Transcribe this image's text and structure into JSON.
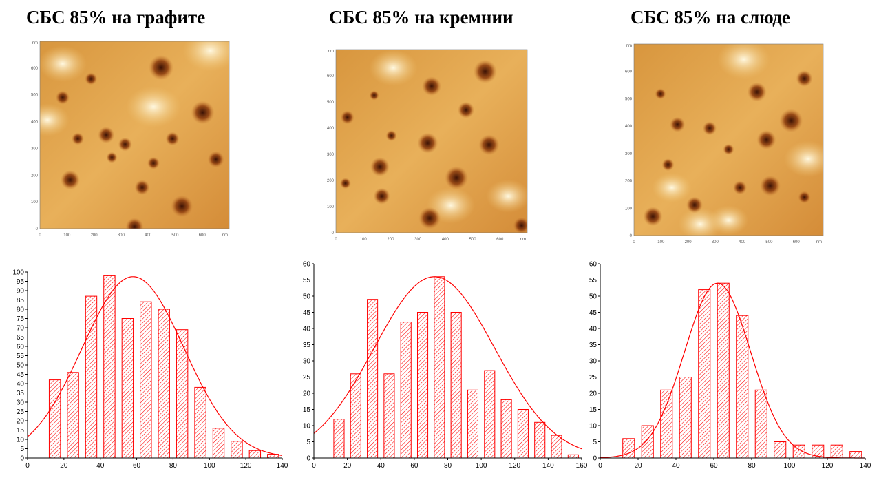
{
  "panels": [
    {
      "title": "СБС 85% на графите",
      "afm": {
        "x_ticks": [
          "0",
          "100",
          "200",
          "300",
          "400",
          "500",
          "600"
        ],
        "y_ticks": [
          "0",
          "100",
          "200",
          "300",
          "400",
          "500",
          "600"
        ],
        "unit": "nm"
      }
    },
    {
      "title": "СБС 85% на кремнии",
      "afm": {
        "x_ticks": [
          "0",
          "100",
          "200",
          "300",
          "400",
          "500",
          "600"
        ],
        "y_ticks": [
          "0",
          "100",
          "200",
          "300",
          "400",
          "500",
          "600"
        ],
        "unit": "nm"
      }
    },
    {
      "title": "СБС 85% на слюде",
      "afm": {
        "x_ticks": [
          "0",
          "100",
          "200",
          "300",
          "400",
          "500",
          "600"
        ],
        "y_ticks": [
          "0",
          "100",
          "200",
          "300",
          "400",
          "500",
          "600"
        ],
        "unit": "nm"
      }
    }
  ],
  "colors": {
    "bar": "#ff0000",
    "curve": "#ff0000",
    "axis": "#000000",
    "afm_light": "#fbe8b0",
    "afm_mid": "#e0a050",
    "afm_dark": "#4a1a06"
  },
  "chart_data": [
    {
      "type": "bar",
      "x": [
        15,
        25,
        35,
        45,
        55,
        65,
        75,
        85,
        95,
        105,
        115,
        125,
        135
      ],
      "values": [
        42,
        46,
        87,
        98,
        75,
        84,
        80,
        69,
        38,
        16,
        9,
        4,
        2
      ],
      "xlim": [
        0,
        140
      ],
      "ylim": [
        0,
        100
      ],
      "xticks": [
        0,
        20,
        40,
        60,
        80,
        100,
        120,
        140
      ],
      "yticks": [
        0,
        5,
        10,
        15,
        20,
        25,
        30,
        35,
        40,
        45,
        50,
        55,
        60,
        65,
        70,
        75,
        80,
        85,
        90,
        95,
        100
      ],
      "fit": {
        "type": "gaussian",
        "peak": 97.5,
        "mean": 58,
        "sd": 28
      },
      "grid": false
    },
    {
      "type": "bar",
      "x": [
        15,
        25,
        35,
        45,
        55,
        65,
        75,
        85,
        95,
        105,
        115,
        125,
        135,
        145,
        155
      ],
      "values": [
        12,
        26,
        49,
        26,
        42,
        45,
        56,
        45,
        21,
        27,
        18,
        15,
        11,
        7,
        1
      ],
      "xlim": [
        0,
        160
      ],
      "ylim": [
        0,
        60
      ],
      "xticks": [
        0,
        20,
        40,
        60,
        80,
        100,
        120,
        140,
        160
      ],
      "yticks": [
        0,
        5,
        10,
        15,
        20,
        25,
        30,
        35,
        40,
        45,
        50,
        55,
        60
      ],
      "fit": {
        "type": "gaussian",
        "peak": 56,
        "mean": 72,
        "sd": 36
      },
      "grid": false
    },
    {
      "type": "bar",
      "x": [
        15,
        25,
        35,
        45,
        55,
        65,
        75,
        85,
        95,
        105,
        115,
        125,
        135
      ],
      "values": [
        6,
        10,
        21,
        25,
        52,
        54,
        44,
        21,
        5,
        4,
        4,
        4,
        2
      ],
      "xlim": [
        0,
        140
      ],
      "ylim": [
        0,
        60
      ],
      "xticks": [
        0,
        20,
        40,
        60,
        80,
        100,
        120,
        140
      ],
      "yticks": [
        0,
        5,
        10,
        15,
        20,
        25,
        30,
        35,
        40,
        45,
        50,
        55,
        60
      ],
      "fit": {
        "type": "gaussian",
        "peak": 54,
        "mean": 62,
        "sd": 17.5
      },
      "grid": false
    }
  ]
}
